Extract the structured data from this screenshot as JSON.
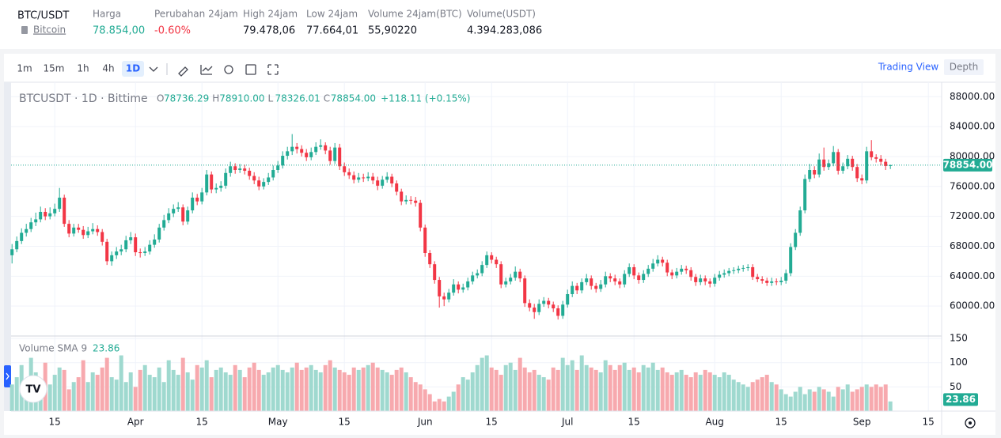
{
  "header": {
    "pair": "BTC/USDT",
    "coin": "Bitcoin",
    "stats": [
      {
        "label": "Harga",
        "value": "78.854,00",
        "color": "#22ab94"
      },
      {
        "label": "Perubahan 24jam",
        "value": "-0.60%",
        "color": "#f23645"
      },
      {
        "label": "High 24jam",
        "value": "79.478,06",
        "color": "#131722"
      },
      {
        "label": "Low 24jam",
        "value": "77.664,01",
        "color": "#131722"
      },
      {
        "label": "Volume 24jam(BTC)",
        "value": "55,90220",
        "color": "#131722"
      },
      {
        "label": "Volume(USDT)",
        "value": "4.394.283,086",
        "color": "#131722"
      }
    ]
  },
  "toolbar": {
    "intervals": [
      "1m",
      "15m",
      "1h",
      "4h",
      "1D"
    ],
    "active": "1D",
    "views": [
      "Trading View",
      "Depth"
    ]
  },
  "chart_data": {
    "type": "candlestick",
    "title": "BTCUSDT · 1D · Bittime",
    "legend": [
      {
        "key": "O",
        "label": "78736.29"
      },
      {
        "key": "H",
        "label": "78910.00"
      },
      {
        "key": "L",
        "label": "78326.01"
      },
      {
        "key": "C",
        "label": "78854.00"
      }
    ],
    "change": "+118.11 (+0.15%)",
    "up_color": "#22ab94",
    "down_color": "#f23645",
    "up_volume_color": "#9fd9cf",
    "down_volume_color": "#f7a9ae",
    "xlim": [
      -0.2,
      195.8
    ],
    "xticks": [
      {
        "value": 9,
        "label": "15"
      },
      {
        "value": 26,
        "label": "Apr"
      },
      {
        "value": 40,
        "label": "15"
      },
      {
        "value": 56,
        "label": "May"
      },
      {
        "value": 70,
        "label": "15"
      },
      {
        "value": 87,
        "label": "Jun"
      },
      {
        "value": 101,
        "label": "15"
      },
      {
        "value": 117,
        "label": "Jul"
      },
      {
        "value": 131,
        "label": "15"
      },
      {
        "value": 148,
        "label": "Aug"
      },
      {
        "value": 162,
        "label": "15"
      },
      {
        "value": 179,
        "label": "Sep"
      },
      {
        "value": 193,
        "label": "15"
      }
    ],
    "ylim": [
      56000,
      89300
    ],
    "yticks": [
      {
        "value": 60000,
        "label": "60000.00"
      },
      {
        "value": 64000,
        "label": "64000.00"
      },
      {
        "value": 68000,
        "label": "68000.00"
      },
      {
        "value": 72000,
        "label": "72000.00"
      },
      {
        "value": 76000,
        "label": "76000.00"
      },
      {
        "value": 80000,
        "label": "80000.00"
      },
      {
        "value": 84000,
        "label": "84000.00"
      },
      {
        "value": 88000,
        "label": "88000.00"
      }
    ],
    "last_price": {
      "value": 78854,
      "label": "78854.00"
    },
    "grid": true,
    "candles": [
      [
        66800,
        68300,
        65700,
        67600
      ],
      [
        67600,
        69300,
        67200,
        68700
      ],
      [
        68700,
        70400,
        68300,
        69800
      ],
      [
        69800,
        71000,
        69300,
        70300
      ],
      [
        70300,
        71800,
        69900,
        71200
      ],
      [
        71200,
        72500,
        70700,
        71600
      ],
      [
        71600,
        73300,
        71200,
        72600
      ],
      [
        72600,
        73100,
        71500,
        72000
      ],
      [
        72000,
        73200,
        71600,
        72400
      ],
      [
        72400,
        73700,
        72000,
        73000
      ],
      [
        73000,
        75800,
        72600,
        74500
      ],
      [
        74500,
        74900,
        70600,
        71000
      ],
      [
        71000,
        71500,
        69200,
        69700
      ],
      [
        69700,
        71000,
        69300,
        70500
      ],
      [
        70500,
        71000,
        69800,
        70200
      ],
      [
        70200,
        70700,
        69000,
        69500
      ],
      [
        69500,
        70600,
        69100,
        70000
      ],
      [
        70000,
        71100,
        69600,
        70300
      ],
      [
        70300,
        70800,
        69400,
        69900
      ],
      [
        69900,
        70300,
        68100,
        68600
      ],
      [
        68600,
        69000,
        65500,
        66000
      ],
      [
        66000,
        67300,
        65400,
        66800
      ],
      [
        66800,
        67900,
        66300,
        67300
      ],
      [
        67300,
        68200,
        66800,
        67600
      ],
      [
        67600,
        69400,
        67200,
        68800
      ],
      [
        68800,
        69900,
        68300,
        69200
      ],
      [
        69200,
        69700,
        66700,
        67200
      ],
      [
        67200,
        67700,
        66500,
        67100
      ],
      [
        67100,
        67900,
        66700,
        67300
      ],
      [
        67300,
        68800,
        66900,
        68200
      ],
      [
        68200,
        69600,
        67800,
        68900
      ],
      [
        68900,
        71000,
        68500,
        70500
      ],
      [
        70500,
        72200,
        70100,
        71500
      ],
      [
        71500,
        73100,
        71100,
        72400
      ],
      [
        72400,
        73600,
        71900,
        73000
      ],
      [
        73000,
        73900,
        72600,
        73200
      ],
      [
        73200,
        73600,
        70800,
        71300
      ],
      [
        71300,
        73300,
        70900,
        72800
      ],
      [
        72800,
        75200,
        72400,
        74500
      ],
      [
        74500,
        75000,
        73500,
        74000
      ],
      [
        74000,
        75800,
        73600,
        75200
      ],
      [
        75200,
        78200,
        74800,
        77600
      ],
      [
        77600,
        78000,
        75100,
        75600
      ],
      [
        75600,
        76400,
        75100,
        75800
      ],
      [
        75800,
        76700,
        75300,
        76100
      ],
      [
        76100,
        78400,
        75700,
        77800
      ],
      [
        77800,
        79300,
        77300,
        78700
      ],
      [
        78700,
        79100,
        77700,
        78200
      ],
      [
        78200,
        79000,
        77800,
        78400
      ],
      [
        78400,
        78900,
        77600,
        78100
      ],
      [
        78100,
        78500,
        76900,
        77400
      ],
      [
        77400,
        77900,
        76300,
        76800
      ],
      [
        76800,
        77300,
        75500,
        76000
      ],
      [
        76000,
        77100,
        75600,
        76600
      ],
      [
        76600,
        77800,
        76200,
        77200
      ],
      [
        77200,
        78800,
        76800,
        78200
      ],
      [
        78200,
        79400,
        77800,
        78800
      ],
      [
        78800,
        80700,
        78400,
        80100
      ],
      [
        80100,
        81300,
        79600,
        80700
      ],
      [
        80700,
        83000,
        80200,
        81300
      ],
      [
        81300,
        81800,
        80400,
        81000
      ],
      [
        81000,
        81500,
        80000,
        80500
      ],
      [
        80500,
        81000,
        79400,
        79900
      ],
      [
        79900,
        81200,
        79500,
        80600
      ],
      [
        80600,
        81900,
        80200,
        81300
      ],
      [
        81300,
        82300,
        80900,
        81500
      ],
      [
        81500,
        81900,
        80300,
        80800
      ],
      [
        80800,
        81300,
        78900,
        79400
      ],
      [
        79400,
        81800,
        79000,
        81200
      ],
      [
        81200,
        81700,
        78200,
        78700
      ],
      [
        78700,
        79200,
        77400,
        77900
      ],
      [
        77900,
        78400,
        77000,
        77500
      ],
      [
        77500,
        78000,
        76400,
        76900
      ],
      [
        76900,
        77800,
        76500,
        77200
      ],
      [
        77200,
        77700,
        76600,
        77100
      ],
      [
        77100,
        77900,
        76700,
        77300
      ],
      [
        77300,
        77800,
        76300,
        76800
      ],
      [
        76800,
        77300,
        75500,
        76100
      ],
      [
        76100,
        77400,
        75700,
        76900
      ],
      [
        76900,
        77900,
        76500,
        77300
      ],
      [
        77300,
        77700,
        75900,
        76400
      ],
      [
        76400,
        76800,
        74800,
        75300
      ],
      [
        75300,
        75700,
        73500,
        74000
      ],
      [
        74000,
        74800,
        73600,
        74200
      ],
      [
        74200,
        74700,
        73600,
        74100
      ],
      [
        74100,
        74600,
        73300,
        73800
      ],
      [
        73800,
        74200,
        70000,
        70500
      ],
      [
        70500,
        70900,
        66600,
        67100
      ],
      [
        67100,
        67500,
        65100,
        65600
      ],
      [
        65600,
        66000,
        63000,
        63500
      ],
      [
        63500,
        63900,
        59800,
        61300
      ],
      [
        61300,
        61800,
        60000,
        60900
      ],
      [
        60900,
        62300,
        60500,
        61800
      ],
      [
        61800,
        63600,
        61400,
        62900
      ],
      [
        62900,
        63300,
        61700,
        62200
      ],
      [
        62200,
        63000,
        61800,
        62500
      ],
      [
        62500,
        63800,
        62100,
        63300
      ],
      [
        63300,
        64600,
        62900,
        64100
      ],
      [
        64100,
        64900,
        63700,
        64400
      ],
      [
        64400,
        66000,
        64000,
        65500
      ],
      [
        65500,
        67300,
        65100,
        66800
      ],
      [
        66800,
        67200,
        65700,
        66200
      ],
      [
        66200,
        66600,
        65100,
        65600
      ],
      [
        65600,
        66000,
        62400,
        62900
      ],
      [
        62900,
        63800,
        62500,
        63300
      ],
      [
        63300,
        64300,
        62900,
        63800
      ],
      [
        63800,
        65300,
        63400,
        64600
      ],
      [
        64600,
        65000,
        63200,
        63700
      ],
      [
        63700,
        64100,
        59900,
        60400
      ],
      [
        60400,
        60900,
        59300,
        59800
      ],
      [
        59800,
        60300,
        58300,
        59200
      ],
      [
        59200,
        60900,
        58800,
        60300
      ],
      [
        60300,
        61200,
        59900,
        60700
      ],
      [
        60700,
        61100,
        59700,
        60200
      ],
      [
        60200,
        60600,
        59200,
        59700
      ],
      [
        59700,
        60100,
        58200,
        58700
      ],
      [
        58700,
        60700,
        58300,
        60200
      ],
      [
        60200,
        62200,
        59800,
        61600
      ],
      [
        61600,
        63300,
        61200,
        62700
      ],
      [
        62700,
        63100,
        61600,
        62100
      ],
      [
        62100,
        63700,
        61700,
        63200
      ],
      [
        63200,
        64300,
        62800,
        63700
      ],
      [
        63700,
        64100,
        62200,
        62700
      ],
      [
        62700,
        63100,
        61800,
        62300
      ],
      [
        62300,
        63500,
        61900,
        62900
      ],
      [
        62900,
        64600,
        62500,
        64000
      ],
      [
        64000,
        64400,
        63200,
        63700
      ],
      [
        63700,
        64200,
        62800,
        63300
      ],
      [
        63300,
        63700,
        62400,
        62900
      ],
      [
        62900,
        64800,
        62500,
        64300
      ],
      [
        64300,
        65700,
        63900,
        65200
      ],
      [
        65200,
        65600,
        63600,
        64100
      ],
      [
        64100,
        64500,
        63000,
        63500
      ],
      [
        63500,
        64800,
        63100,
        64300
      ],
      [
        64300,
        65500,
        63900,
        65000
      ],
      [
        65000,
        66300,
        64600,
        65700
      ],
      [
        65700,
        66800,
        65300,
        66200
      ],
      [
        66200,
        66600,
        65300,
        65800
      ],
      [
        65800,
        66200,
        64000,
        64500
      ],
      [
        64500,
        64900,
        63600,
        64100
      ],
      [
        64100,
        65100,
        63700,
        64600
      ],
      [
        64600,
        65500,
        64200,
        65000
      ],
      [
        65000,
        65400,
        64300,
        64800
      ],
      [
        64800,
        65200,
        63400,
        63900
      ],
      [
        63900,
        64300,
        62700,
        63200
      ],
      [
        63200,
        64200,
        62800,
        63700
      ],
      [
        63700,
        64100,
        62800,
        63300
      ],
      [
        63300,
        63700,
        62500,
        63000
      ],
      [
        63000,
        64300,
        62600,
        63800
      ],
      [
        63800,
        64700,
        63400,
        64200
      ],
      [
        64200,
        64900,
        63800,
        64400
      ],
      [
        64400,
        65100,
        64000,
        64700
      ],
      [
        64700,
        65200,
        64300,
        64800
      ],
      [
        64800,
        65400,
        64400,
        65000
      ],
      [
        65000,
        65500,
        64600,
        65100
      ],
      [
        65100,
        65600,
        64700,
        65200
      ],
      [
        65200,
        65600,
        63500,
        63900
      ],
      [
        63900,
        64300,
        63200,
        63600
      ],
      [
        63600,
        64000,
        63000,
        63400
      ],
      [
        63400,
        63800,
        62700,
        63100
      ],
      [
        63100,
        63800,
        62700,
        63300
      ],
      [
        63300,
        63700,
        62800,
        63200
      ],
      [
        63200,
        63900,
        62800,
        63400
      ],
      [
        63400,
        64900,
        63000,
        64400
      ],
      [
        64400,
        68400,
        64000,
        67900
      ],
      [
        67900,
        70300,
        67500,
        69800
      ],
      [
        69800,
        73300,
        69400,
        72800
      ],
      [
        72800,
        77600,
        72400,
        77000
      ],
      [
        77000,
        79000,
        76600,
        78200
      ],
      [
        78200,
        78700,
        77100,
        77600
      ],
      [
        77600,
        80400,
        77200,
        79600
      ],
      [
        79600,
        81200,
        78100,
        78600
      ],
      [
        78600,
        79600,
        78200,
        79100
      ],
      [
        79100,
        81400,
        78700,
        80600
      ],
      [
        80600,
        81000,
        77600,
        78100
      ],
      [
        78100,
        79200,
        77700,
        78700
      ],
      [
        78700,
        80200,
        78300,
        79700
      ],
      [
        79700,
        80100,
        78100,
        78600
      ],
      [
        78600,
        79000,
        76600,
        77100
      ],
      [
        77100,
        77600,
        76300,
        76800
      ],
      [
        76800,
        81300,
        76400,
        80700
      ],
      [
        80700,
        82200,
        79500,
        79900
      ],
      [
        79900,
        80300,
        79200,
        79700
      ],
      [
        79700,
        80200,
        78800,
        79300
      ],
      [
        79300,
        79700,
        78200,
        78736.29
      ],
      [
        78736.29,
        78910,
        78326.01,
        78854
      ]
    ],
    "volume_label": "Volume SMA 9",
    "volume_sma": 23.86,
    "volume_lim": [
      0,
      155
    ],
    "volume_ticks": [
      50,
      100,
      150
    ],
    "volumes": [
      55,
      70,
      95,
      60,
      110,
      80,
      65,
      100,
      55,
      75,
      90,
      85,
      45,
      60,
      70,
      105,
      60,
      80,
      75,
      90,
      110,
      70,
      65,
      115,
      60,
      80,
      50,
      85,
      95,
      75,
      70,
      90,
      60,
      105,
      85,
      75,
      110,
      80,
      65,
      95,
      90,
      105,
      70,
      85,
      90,
      80,
      75,
      95,
      85,
      70,
      90,
      100,
      85,
      75,
      80,
      90,
      95,
      85,
      80,
      90,
      100,
      85,
      90,
      95,
      85,
      80,
      95,
      105,
      90,
      85,
      80,
      75,
      90,
      85,
      90,
      95,
      100,
      90,
      85,
      80,
      75,
      85,
      90,
      80,
      70,
      60,
      55,
      45,
      35,
      20,
      25,
      20,
      30,
      40,
      55,
      70,
      65,
      80,
      95,
      110,
      115,
      90,
      85,
      75,
      95,
      100,
      85,
      110,
      90,
      80,
      85,
      75,
      70,
      65,
      90,
      85,
      110,
      95,
      105,
      85,
      115,
      95,
      90,
      85,
      80,
      105,
      95,
      85,
      95,
      100,
      85,
      90,
      80,
      95,
      90,
      100,
      85,
      90,
      80,
      75,
      80,
      85,
      75,
      70,
      80,
      75,
      85,
      80,
      75,
      70,
      80,
      75,
      65,
      60,
      55,
      50,
      60,
      65,
      70,
      75,
      60,
      55,
      45,
      35,
      30,
      40,
      50,
      35,
      45,
      40,
      50,
      45,
      40,
      30,
      50,
      45,
      55,
      40,
      45,
      50,
      55,
      50,
      55,
      50,
      55,
      20
    ]
  }
}
